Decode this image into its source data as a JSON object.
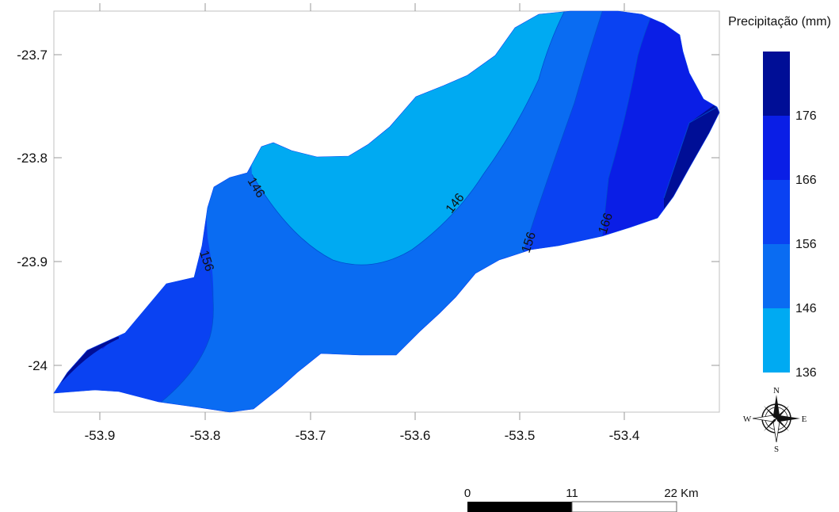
{
  "map": {
    "x_ticks": [
      "-53.9",
      "-53.8",
      "-53.7",
      "-53.6",
      "-53.5",
      "-53.4"
    ],
    "y_ticks": [
      "-23.7",
      "-23.8",
      "-23.9",
      "-24"
    ],
    "contour_labels": [
      "146",
      "146",
      "156",
      "156",
      "166"
    ]
  },
  "legend": {
    "title": "Precipitação (mm)",
    "breaks": [
      "136",
      "146",
      "156",
      "166",
      "176"
    ],
    "colors": [
      "#00aaf2",
      "#0a6cf2",
      "#0a42f2",
      "#0a1ee6",
      "#000e96"
    ]
  },
  "compass": {
    "n": "N",
    "s": "S",
    "e": "E",
    "w": "W"
  },
  "scale_bar": {
    "labels": [
      "0",
      "11",
      "22 Km"
    ]
  }
}
